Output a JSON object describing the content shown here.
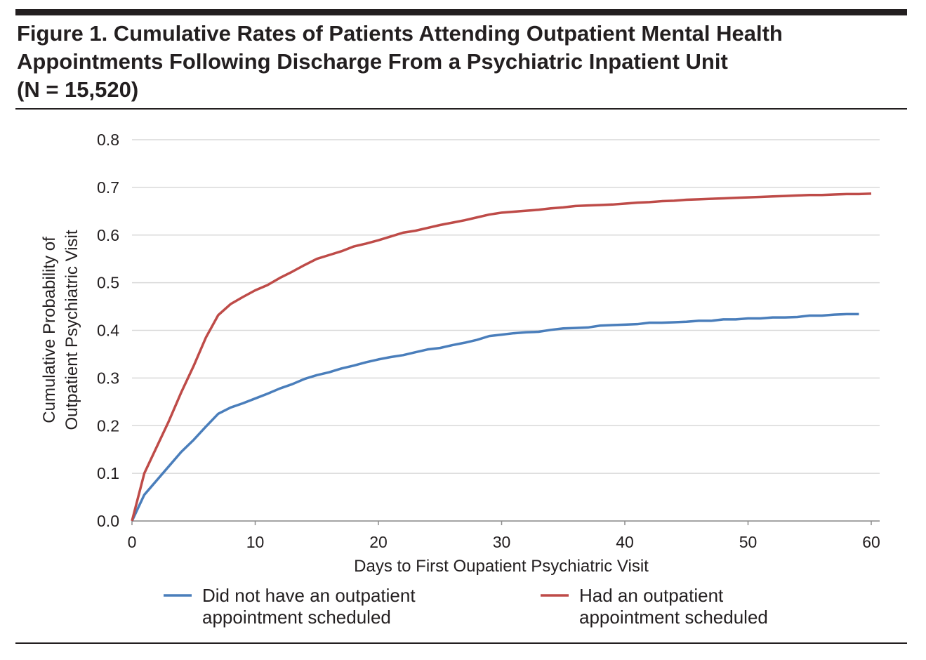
{
  "chart_data": {
    "type": "line",
    "title": [
      "Figure 1. Cumulative Rates of Patients Attending Outpatient Mental Health",
      "Appointments Following Discharge From a Psychiatric Inpatient Unit",
      "(N = 15,520)"
    ],
    "x_label": "Days to First Oupatient Psychiatric Visit",
    "y_label": [
      "Cumulative Probability of",
      "Outpatient Psychiatric Visit"
    ],
    "xlim": [
      0,
      60
    ],
    "xticks": [
      0,
      10,
      20,
      30,
      40,
      50,
      60
    ],
    "ylim": [
      0,
      0.8
    ],
    "yticks": [
      {
        "value": 0,
        "label": "0.0"
      },
      0.1,
      0.2,
      0.3,
      0.4,
      0.5,
      0.6,
      0.7,
      0.8
    ],
    "grid": true,
    "series": [
      {
        "name": "Did not have an outpatient appointment scheduled",
        "color": "#4a7ebb",
        "x": [
          0,
          1,
          2,
          3,
          4,
          5,
          6,
          7,
          8,
          9,
          10,
          11,
          12,
          13,
          14,
          15,
          16,
          17,
          18,
          19,
          20,
          21,
          22,
          23,
          24,
          25,
          26,
          27,
          28,
          29,
          30,
          31,
          32,
          33,
          34,
          35,
          36,
          37,
          38,
          39,
          40,
          41,
          42,
          43,
          44,
          45,
          46,
          47,
          48,
          49,
          50,
          51,
          52,
          53,
          54,
          55,
          56,
          57,
          58,
          59
        ],
        "values": [
          0,
          0.055,
          0.085,
          0.115,
          0.145,
          0.17,
          0.198,
          0.225,
          0.238,
          0.247,
          0.257,
          0.267,
          0.278,
          0.287,
          0.298,
          0.306,
          0.312,
          0.32,
          0.326,
          0.333,
          0.339,
          0.344,
          0.348,
          0.354,
          0.36,
          0.363,
          0.369,
          0.374,
          0.38,
          0.388,
          0.391,
          0.394,
          0.396,
          0.397,
          0.401,
          0.404,
          0.405,
          0.406,
          0.41,
          0.411,
          0.412,
          0.413,
          0.416,
          0.416,
          0.417,
          0.418,
          0.42,
          0.42,
          0.423,
          0.423,
          0.425,
          0.425,
          0.427,
          0.427,
          0.428,
          0.431,
          0.431,
          0.433,
          0.434,
          0.434
        ]
      },
      {
        "name": "Had an outpatient appointment scheduled",
        "color": "#be4b48",
        "x": [
          0,
          1,
          2,
          3,
          4,
          5,
          6,
          7,
          8,
          9,
          10,
          11,
          12,
          13,
          14,
          15,
          16,
          17,
          18,
          19,
          20,
          21,
          22,
          23,
          24,
          25,
          26,
          27,
          28,
          29,
          30,
          31,
          32,
          33,
          34,
          35,
          36,
          37,
          38,
          39,
          40,
          41,
          42,
          43,
          44,
          45,
          46,
          47,
          48,
          49,
          50,
          51,
          52,
          53,
          54,
          55,
          56,
          57,
          58,
          59,
          60
        ],
        "values": [
          0,
          0.1,
          0.155,
          0.21,
          0.27,
          0.325,
          0.385,
          0.432,
          0.455,
          0.47,
          0.484,
          0.495,
          0.51,
          0.523,
          0.537,
          0.55,
          0.558,
          0.566,
          0.576,
          0.582,
          0.589,
          0.597,
          0.605,
          0.609,
          0.615,
          0.621,
          0.626,
          0.631,
          0.637,
          0.643,
          0.647,
          0.649,
          0.651,
          0.653,
          0.656,
          0.658,
          0.661,
          0.662,
          0.663,
          0.664,
          0.666,
          0.668,
          0.669,
          0.671,
          0.672,
          0.674,
          0.675,
          0.676,
          0.677,
          0.678,
          0.679,
          0.68,
          0.681,
          0.682,
          0.683,
          0.684,
          0.684,
          0.685,
          0.686,
          0.686,
          0.687
        ]
      }
    ]
  }
}
